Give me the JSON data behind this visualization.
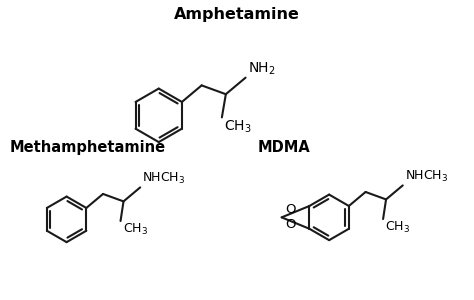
{
  "title": "Amphetamine",
  "title2": "Methamphetamine",
  "title3": "MDMA",
  "bg_color": "#ffffff",
  "line_color": "#1a1a1a",
  "line_width": 1.5,
  "font_size_title": 10.5,
  "font_size_label": 8.5
}
